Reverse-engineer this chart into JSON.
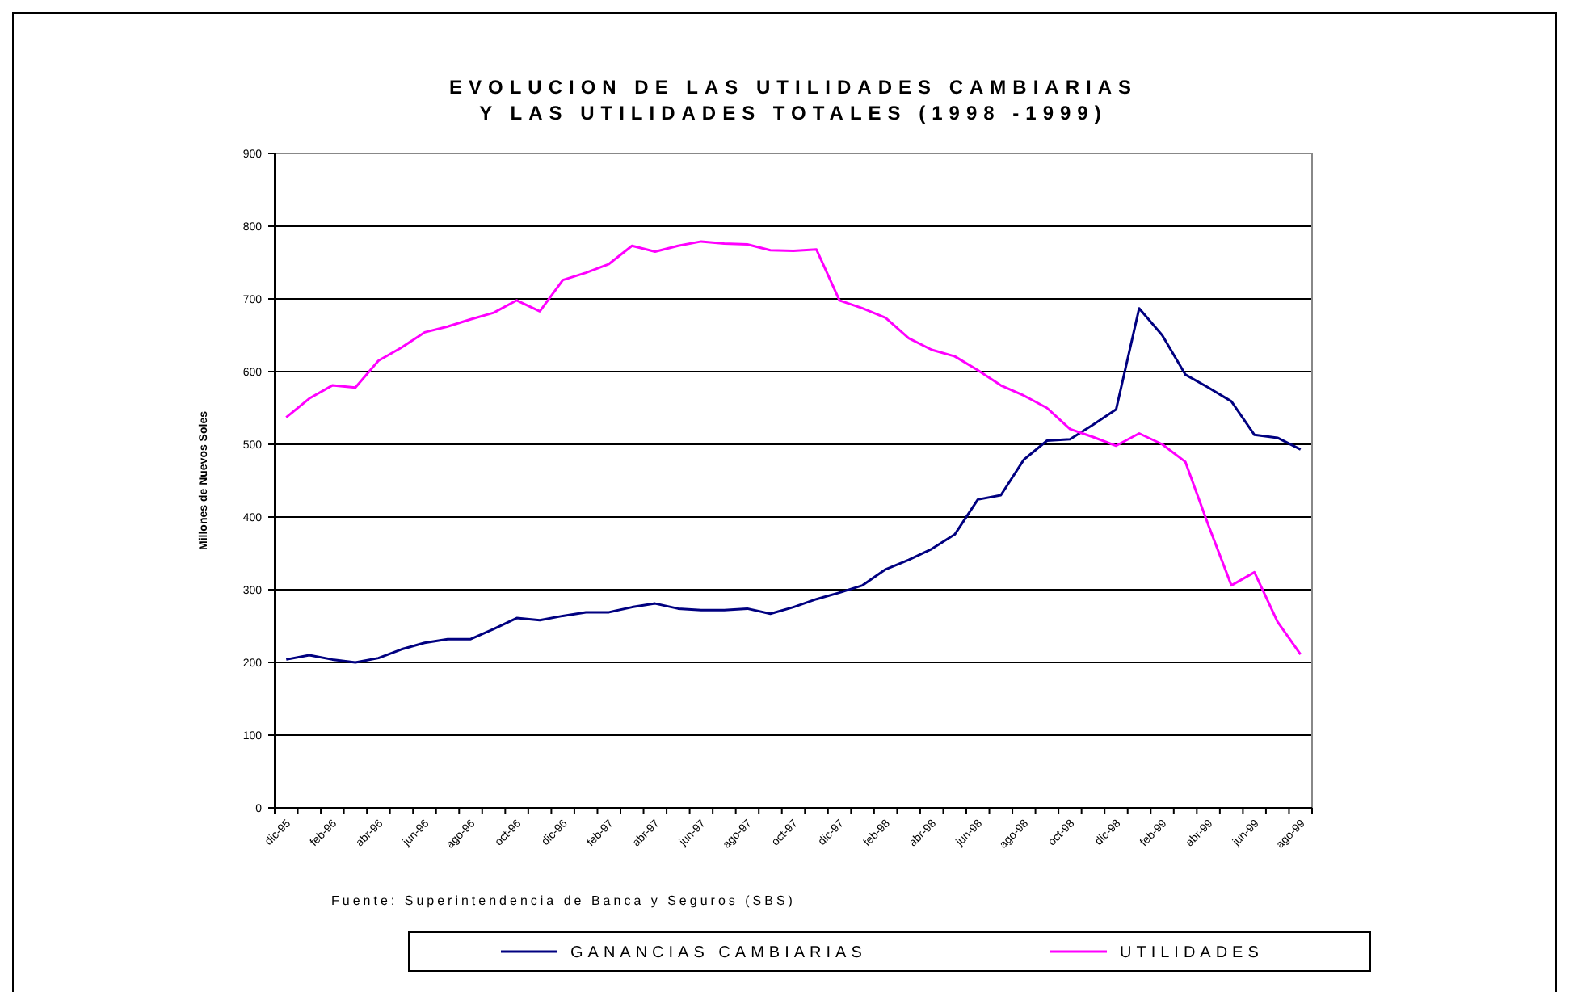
{
  "chart_data": {
    "type": "line",
    "title": "EVOLUCION DE LAS UTILIDADES CAMBIARIAS\nY LAS UTILIDADES TOTALES (1998 -1999)",
    "ylabel": "Millones de Nuevos Soles",
    "categories": [
      "dic-95",
      null,
      "feb-96",
      null,
      "abr-96",
      null,
      "jun-96",
      null,
      "ago-96",
      null,
      "oct-96",
      null,
      "dic-96",
      null,
      "feb-97",
      null,
      "abr-97",
      null,
      "jun-97",
      null,
      "ago-97",
      null,
      "oct-97",
      null,
      "dic-97",
      null,
      "feb-98",
      null,
      "abr-98",
      null,
      "jun-98",
      null,
      "ago-98",
      null,
      "oct-98",
      null,
      "dic-98",
      null,
      "feb-99",
      null,
      "abr-99",
      null,
      "jun-99",
      null,
      "ago-99"
    ],
    "series": [
      {
        "name": "GANANCIAS CAMBIARIAS",
        "color": "#000080",
        "values": [
          204,
          210,
          204,
          200,
          206,
          218,
          227,
          232,
          232,
          246,
          261,
          258,
          264,
          269,
          269,
          276,
          281,
          274,
          272,
          272,
          274,
          267,
          276,
          287,
          296,
          306,
          328,
          341,
          356,
          376,
          424,
          430,
          479,
          505,
          507,
          527,
          548,
          687,
          650,
          596,
          578,
          559,
          513,
          509,
          493
        ]
      },
      {
        "name": "UTILIDADES",
        "color": "#ff00ff",
        "values": [
          537,
          563,
          581,
          578,
          615,
          633,
          654,
          662,
          672,
          681,
          698,
          683,
          726,
          736,
          748,
          773,
          765,
          773,
          779,
          776,
          775,
          767,
          766,
          768,
          698,
          687,
          674,
          646,
          630,
          621,
          602,
          581,
          567,
          550,
          521,
          510,
          498,
          515,
          500,
          476,
          389,
          306,
          324,
          256,
          211
        ]
      }
    ],
    "ylim": [
      0,
      900
    ],
    "yticks": [
      0,
      100,
      200,
      300,
      400,
      500,
      600,
      700,
      800,
      900
    ],
    "grid": "y",
    "legend": "bottom",
    "marker": "none",
    "line_style": "solid",
    "annotations": [
      "Fuente: Superintendencia de Banca y Seguros (SBS)"
    ]
  }
}
